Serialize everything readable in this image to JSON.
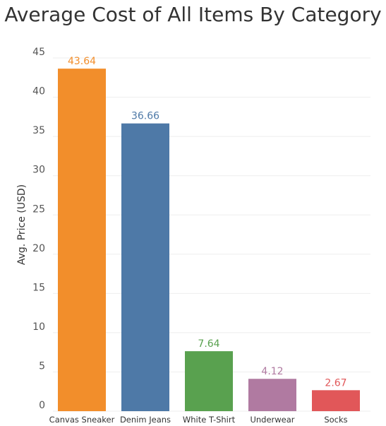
{
  "chart_data": {
    "type": "bar",
    "title": "Average Cost of All Items By Category",
    "xlabel": "",
    "ylabel": "Avg. Price (USD)",
    "ylim": [
      0,
      47
    ],
    "yticks": [
      0,
      5,
      10,
      15,
      20,
      25,
      30,
      35,
      40,
      45
    ],
    "grid": true,
    "categories": [
      "Canvas Sneaker",
      "Denim Jeans",
      "White T-Shirt",
      "Underwear",
      "Socks"
    ],
    "values": [
      43.64,
      36.66,
      7.64,
      4.12,
      2.67
    ],
    "value_labels": [
      "43.64",
      "36.66",
      "7.64",
      "4.12",
      "2.67"
    ],
    "colors": [
      "#F28E2B",
      "#4E79A7",
      "#59A14F",
      "#B07AA1",
      "#E15759"
    ]
  }
}
